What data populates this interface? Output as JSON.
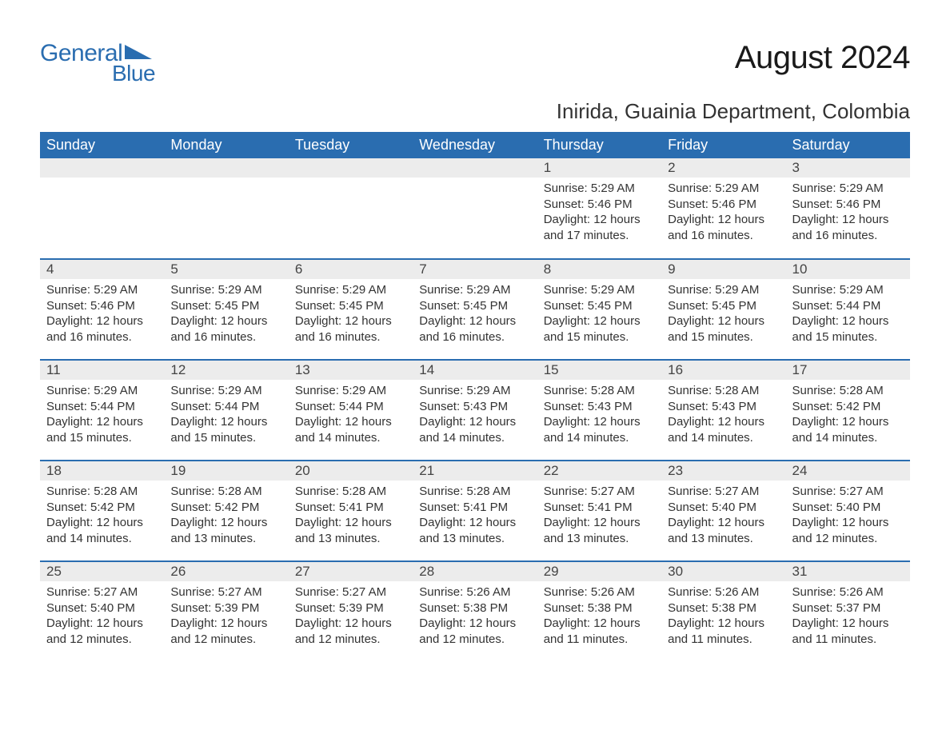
{
  "logo": {
    "word1": "General",
    "word2": "Blue"
  },
  "title": "August 2024",
  "location": "Inirida, Guainia Department, Colombia",
  "colors": {
    "header_bg": "#2a6db0",
    "header_text": "#ffffff",
    "daynum_bg": "#ececec",
    "row_border": "#2a6db0",
    "body_text": "#333333",
    "logo_color": "#2a6db0"
  },
  "weekdays": [
    "Sunday",
    "Monday",
    "Tuesday",
    "Wednesday",
    "Thursday",
    "Friday",
    "Saturday"
  ],
  "weeks": [
    [
      null,
      null,
      null,
      null,
      {
        "n": "1",
        "sr": "5:29 AM",
        "ss": "5:46 PM",
        "dl": "12 hours and 17 minutes."
      },
      {
        "n": "2",
        "sr": "5:29 AM",
        "ss": "5:46 PM",
        "dl": "12 hours and 16 minutes."
      },
      {
        "n": "3",
        "sr": "5:29 AM",
        "ss": "5:46 PM",
        "dl": "12 hours and 16 minutes."
      }
    ],
    [
      {
        "n": "4",
        "sr": "5:29 AM",
        "ss": "5:46 PM",
        "dl": "12 hours and 16 minutes."
      },
      {
        "n": "5",
        "sr": "5:29 AM",
        "ss": "5:45 PM",
        "dl": "12 hours and 16 minutes."
      },
      {
        "n": "6",
        "sr": "5:29 AM",
        "ss": "5:45 PM",
        "dl": "12 hours and 16 minutes."
      },
      {
        "n": "7",
        "sr": "5:29 AM",
        "ss": "5:45 PM",
        "dl": "12 hours and 16 minutes."
      },
      {
        "n": "8",
        "sr": "5:29 AM",
        "ss": "5:45 PM",
        "dl": "12 hours and 15 minutes."
      },
      {
        "n": "9",
        "sr": "5:29 AM",
        "ss": "5:45 PM",
        "dl": "12 hours and 15 minutes."
      },
      {
        "n": "10",
        "sr": "5:29 AM",
        "ss": "5:44 PM",
        "dl": "12 hours and 15 minutes."
      }
    ],
    [
      {
        "n": "11",
        "sr": "5:29 AM",
        "ss": "5:44 PM",
        "dl": "12 hours and 15 minutes."
      },
      {
        "n": "12",
        "sr": "5:29 AM",
        "ss": "5:44 PM",
        "dl": "12 hours and 15 minutes."
      },
      {
        "n": "13",
        "sr": "5:29 AM",
        "ss": "5:44 PM",
        "dl": "12 hours and 14 minutes."
      },
      {
        "n": "14",
        "sr": "5:29 AM",
        "ss": "5:43 PM",
        "dl": "12 hours and 14 minutes."
      },
      {
        "n": "15",
        "sr": "5:28 AM",
        "ss": "5:43 PM",
        "dl": "12 hours and 14 minutes."
      },
      {
        "n": "16",
        "sr": "5:28 AM",
        "ss": "5:43 PM",
        "dl": "12 hours and 14 minutes."
      },
      {
        "n": "17",
        "sr": "5:28 AM",
        "ss": "5:42 PM",
        "dl": "12 hours and 14 minutes."
      }
    ],
    [
      {
        "n": "18",
        "sr": "5:28 AM",
        "ss": "5:42 PM",
        "dl": "12 hours and 14 minutes."
      },
      {
        "n": "19",
        "sr": "5:28 AM",
        "ss": "5:42 PM",
        "dl": "12 hours and 13 minutes."
      },
      {
        "n": "20",
        "sr": "5:28 AM",
        "ss": "5:41 PM",
        "dl": "12 hours and 13 minutes."
      },
      {
        "n": "21",
        "sr": "5:28 AM",
        "ss": "5:41 PM",
        "dl": "12 hours and 13 minutes."
      },
      {
        "n": "22",
        "sr": "5:27 AM",
        "ss": "5:41 PM",
        "dl": "12 hours and 13 minutes."
      },
      {
        "n": "23",
        "sr": "5:27 AM",
        "ss": "5:40 PM",
        "dl": "12 hours and 13 minutes."
      },
      {
        "n": "24",
        "sr": "5:27 AM",
        "ss": "5:40 PM",
        "dl": "12 hours and 12 minutes."
      }
    ],
    [
      {
        "n": "25",
        "sr": "5:27 AM",
        "ss": "5:40 PM",
        "dl": "12 hours and 12 minutes."
      },
      {
        "n": "26",
        "sr": "5:27 AM",
        "ss": "5:39 PM",
        "dl": "12 hours and 12 minutes."
      },
      {
        "n": "27",
        "sr": "5:27 AM",
        "ss": "5:39 PM",
        "dl": "12 hours and 12 minutes."
      },
      {
        "n": "28",
        "sr": "5:26 AM",
        "ss": "5:38 PM",
        "dl": "12 hours and 12 minutes."
      },
      {
        "n": "29",
        "sr": "5:26 AM",
        "ss": "5:38 PM",
        "dl": "12 hours and 11 minutes."
      },
      {
        "n": "30",
        "sr": "5:26 AM",
        "ss": "5:38 PM",
        "dl": "12 hours and 11 minutes."
      },
      {
        "n": "31",
        "sr": "5:26 AM",
        "ss": "5:37 PM",
        "dl": "12 hours and 11 minutes."
      }
    ]
  ],
  "labels": {
    "sunrise_prefix": "Sunrise: ",
    "sunset_prefix": "Sunset: ",
    "daylight_prefix": "Daylight: "
  }
}
